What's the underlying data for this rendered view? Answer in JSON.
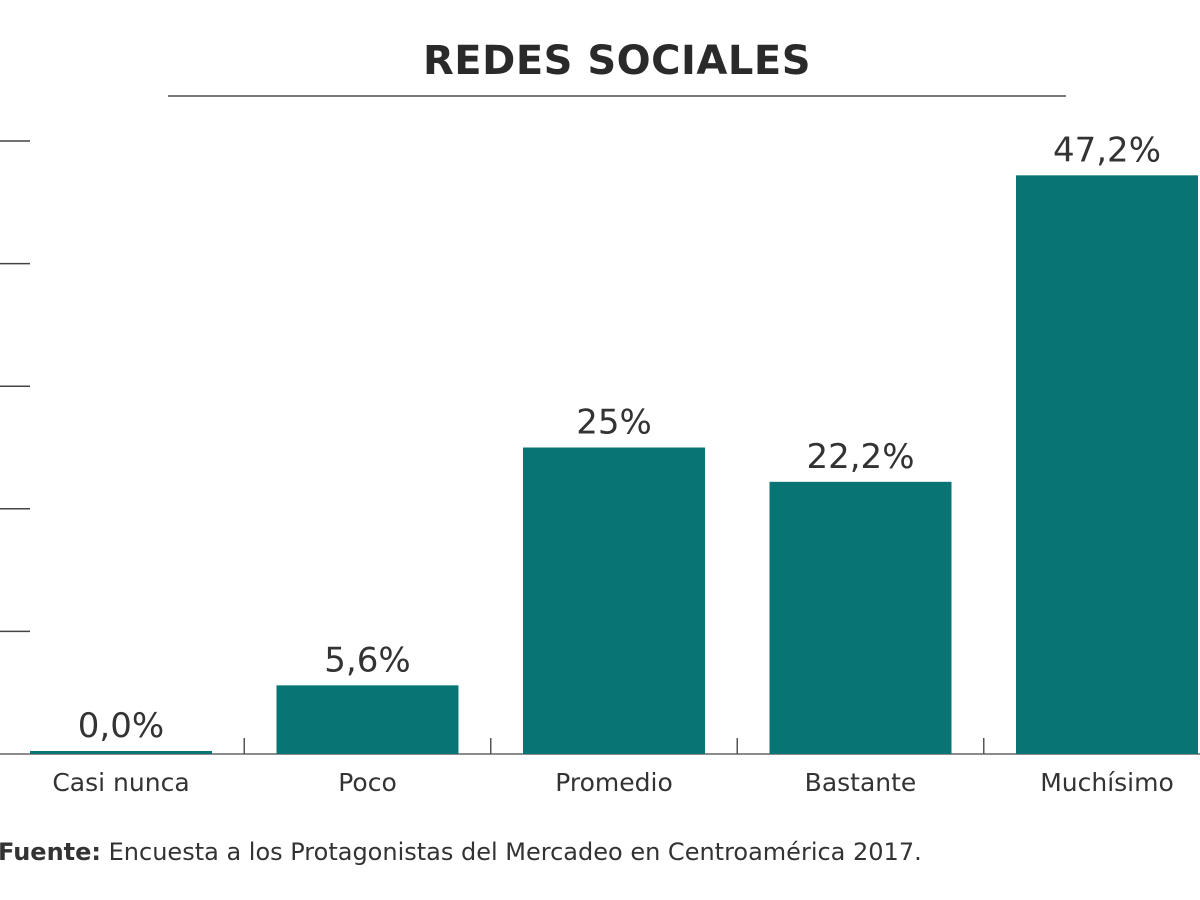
{
  "chart_data": {
    "type": "bar",
    "title": "REDES SOCIALES",
    "categories": [
      "Casi nunca",
      "Poco",
      "Promedio",
      "Bastante",
      "Muchísimo"
    ],
    "values": [
      0.0,
      5.6,
      25,
      22.2,
      47.2
    ],
    "value_labels": [
      "0,0%",
      "5,6%",
      "25%",
      "22,2%",
      "47,2%"
    ],
    "ylim": [
      0,
      50
    ],
    "grid": false,
    "bar_color": "#087473"
  },
  "footer": {
    "source_label": "Fuente:",
    "source_text": "Encuesta a los Protagonistas del Mercadeo en Centroamérica 2017."
  }
}
